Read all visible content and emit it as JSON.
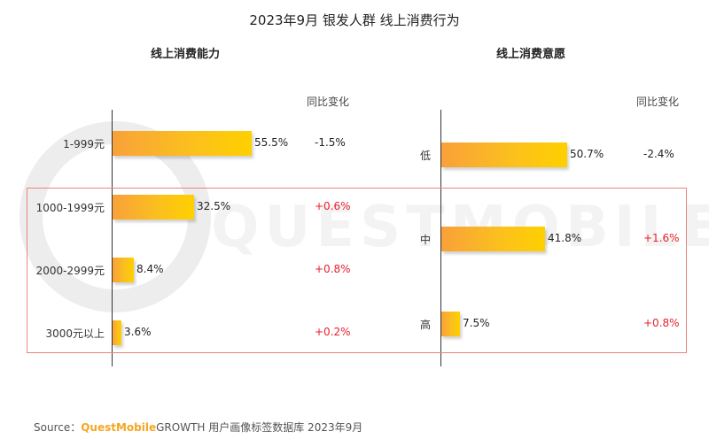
{
  "title": "2023年9月 银发人群 线上消费行为",
  "watermark": "QUESTMOBILE",
  "colors": {
    "bar_start": "#f9a13a",
    "bar_end": "#ffd000",
    "positive_change": "#e8202a",
    "negative_change": "#222222",
    "highlight_border": "#e8857c",
    "brand": "#f5a623"
  },
  "source": {
    "prefix": "Source：",
    "brand": "QuestMobile",
    "text": "GROWTH 用户画像标签数据库 2023年9月"
  },
  "chart_data": [
    {
      "type": "bar",
      "orientation": "horizontal",
      "title": "线上消费能力",
      "change_header": "同比变化",
      "categories": [
        "1-999元",
        "1000-1999元",
        "2000-2999元",
        "3000元以上"
      ],
      "values": [
        55.5,
        32.5,
        8.4,
        3.6
      ],
      "value_labels": [
        "55.5%",
        "32.5%",
        "8.4%",
        "3.6%"
      ],
      "changes": [
        "-1.5%",
        "+0.6%",
        "+0.8%",
        "+0.2%"
      ],
      "change_direction": [
        "down",
        "up",
        "up",
        "up"
      ],
      "highlighted_categories": [
        "1000-1999元",
        "2000-2999元",
        "3000元以上"
      ],
      "xlim": [
        0,
        60
      ],
      "grid": false
    },
    {
      "type": "bar",
      "orientation": "horizontal",
      "title": "线上消费意愿",
      "change_header": "同比变化",
      "categories": [
        "低",
        "中",
        "高"
      ],
      "values": [
        50.7,
        41.8,
        7.5
      ],
      "value_labels": [
        "50.7%",
        "41.8%",
        "7.5%"
      ],
      "changes": [
        "-2.4%",
        "+1.6%",
        "+0.8%"
      ],
      "change_direction": [
        "down",
        "up",
        "up"
      ],
      "highlighted_categories": [
        "中",
        "高"
      ],
      "xlim": [
        0,
        56
      ],
      "grid": false
    }
  ]
}
